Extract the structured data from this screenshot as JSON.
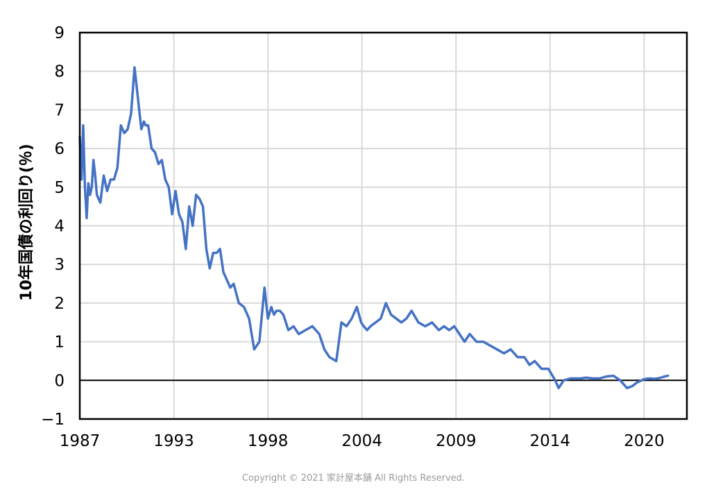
{
  "chart_data": {
    "type": "line",
    "title": "",
    "xlabel": "",
    "ylabel": "10年国債の利回り(％)",
    "xlim": [
      1987,
      2022.5
    ],
    "ylim": [
      -1,
      9
    ],
    "y_ticks": [
      "−1",
      "0",
      "1",
      "2",
      "3",
      "4",
      "5",
      "6",
      "7",
      "8",
      "9"
    ],
    "x_tick_labels": [
      "1987",
      "1993",
      "1998",
      "2004",
      "2009",
      "2014",
      "2020"
    ],
    "x_tick_positions": [
      1987,
      1992.5,
      1998,
      2003.5,
      2009,
      2014.5,
      2020
    ],
    "grid": true,
    "legend": "none",
    "line_color": "#4472c4",
    "series": [
      {
        "x": [
          1987.0,
          1987.1,
          1987.2,
          1987.3,
          1987.4,
          1987.5,
          1987.6,
          1987.7,
          1987.8,
          1987.9,
          1988.0,
          1988.2,
          1988.4,
          1988.6,
          1988.8,
          1989.0,
          1989.2,
          1989.4,
          1989.6,
          1989.8,
          1990.0,
          1990.2,
          1990.4,
          1990.6,
          1990.75,
          1990.85,
          1991.0,
          1991.2,
          1991.4,
          1991.6,
          1991.8,
          1992.0,
          1992.2,
          1992.4,
          1992.6,
          1992.8,
          1993.0,
          1993.2,
          1993.4,
          1993.6,
          1993.8,
          1994.0,
          1994.2,
          1994.4,
          1994.6,
          1994.8,
          1995.0,
          1995.2,
          1995.4,
          1995.6,
          1995.8,
          1996.0,
          1996.3,
          1996.6,
          1996.9,
          1997.2,
          1997.5,
          1997.8,
          1998.0,
          1998.2,
          1998.35,
          1998.5,
          1998.7,
          1998.9,
          1999.2,
          1999.5,
          1999.8,
          2000.2,
          2000.6,
          2001.0,
          2001.3,
          2001.6,
          2002.0,
          2002.3,
          2002.6,
          2002.9,
          2003.2,
          2003.45,
          2003.6,
          2003.8,
          2004.0,
          2004.3,
          2004.6,
          2004.9,
          2005.2,
          2005.5,
          2005.8,
          2006.1,
          2006.4,
          2006.8,
          2007.2,
          2007.6,
          2008.0,
          2008.3,
          2008.6,
          2008.9,
          2009.2,
          2009.5,
          2009.8,
          2010.2,
          2010.6,
          2011.0,
          2011.4,
          2011.8,
          2012.2,
          2012.6,
          2013.0,
          2013.3,
          2013.6,
          2014.0,
          2014.4,
          2014.8,
          2015.0,
          2015.3,
          2015.7,
          2016.0,
          2016.3,
          2016.6,
          2017.0,
          2017.4,
          2017.8,
          2018.2,
          2018.6,
          2019.0,
          2019.3,
          2019.6,
          2020.0,
          2020.3,
          2020.6,
          2020.9,
          2021.2,
          2021.4
        ],
        "y": [
          6.3,
          5.2,
          6.6,
          5.0,
          4.2,
          5.1,
          4.8,
          5.0,
          5.7,
          5.3,
          4.8,
          4.6,
          5.3,
          4.9,
          5.2,
          5.2,
          5.5,
          6.6,
          6.4,
          6.5,
          6.9,
          8.1,
          7.3,
          6.5,
          6.7,
          6.6,
          6.6,
          6.0,
          5.9,
          5.6,
          5.7,
          5.2,
          5.0,
          4.3,
          4.9,
          4.3,
          4.1,
          3.4,
          4.5,
          4.0,
          4.8,
          4.7,
          4.5,
          3.4,
          2.9,
          3.3,
          3.3,
          3.4,
          2.8,
          2.6,
          2.4,
          2.5,
          2.0,
          1.9,
          1.6,
          0.8,
          1.0,
          2.4,
          1.6,
          1.9,
          1.7,
          1.8,
          1.8,
          1.7,
          1.3,
          1.4,
          1.2,
          1.3,
          1.4,
          1.2,
          0.8,
          0.6,
          0.5,
          1.5,
          1.4,
          1.6,
          1.9,
          1.5,
          1.4,
          1.3,
          1.4,
          1.5,
          1.6,
          2.0,
          1.7,
          1.6,
          1.5,
          1.6,
          1.8,
          1.5,
          1.4,
          1.5,
          1.3,
          1.4,
          1.3,
          1.4,
          1.2,
          1.0,
          1.2,
          1.0,
          1.0,
          0.9,
          0.8,
          0.7,
          0.8,
          0.6,
          0.6,
          0.4,
          0.5,
          0.3,
          0.3,
          0.0,
          -0.2,
          0.0,
          0.05,
          0.05,
          0.05,
          0.07,
          0.05,
          0.05,
          0.1,
          0.12,
          0.0,
          -0.2,
          -0.15,
          -0.05,
          0.03,
          0.05,
          0.04,
          0.06,
          0.1,
          0.12
        ]
      }
    ]
  },
  "footer": {
    "copyright": "Copyright © 2021 家計屋本舗 All Rights Reserved."
  }
}
